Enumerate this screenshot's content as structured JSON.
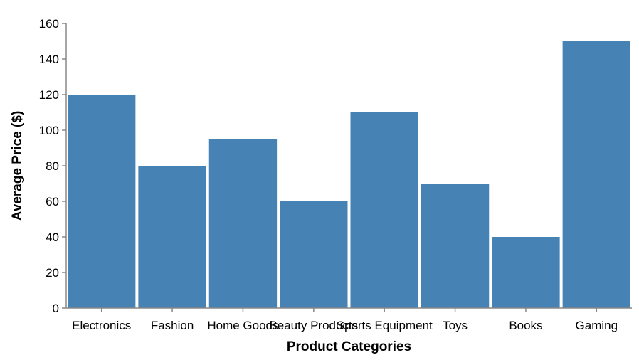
{
  "chart_data": {
    "type": "bar",
    "categories": [
      "Electronics",
      "Fashion",
      "Home Goods",
      "Beauty Products",
      "Sports Equipment",
      "Toys",
      "Books",
      "Gaming"
    ],
    "values": [
      120,
      80,
      95,
      60,
      110,
      70,
      40,
      150
    ],
    "xlabel": "Product Categories",
    "ylabel": "Average Price ($)",
    "ylim": [
      0,
      160
    ],
    "yticks": [
      0,
      20,
      40,
      60,
      80,
      100,
      120,
      140,
      160
    ],
    "grid": false,
    "bar_color": "#4682b4"
  }
}
